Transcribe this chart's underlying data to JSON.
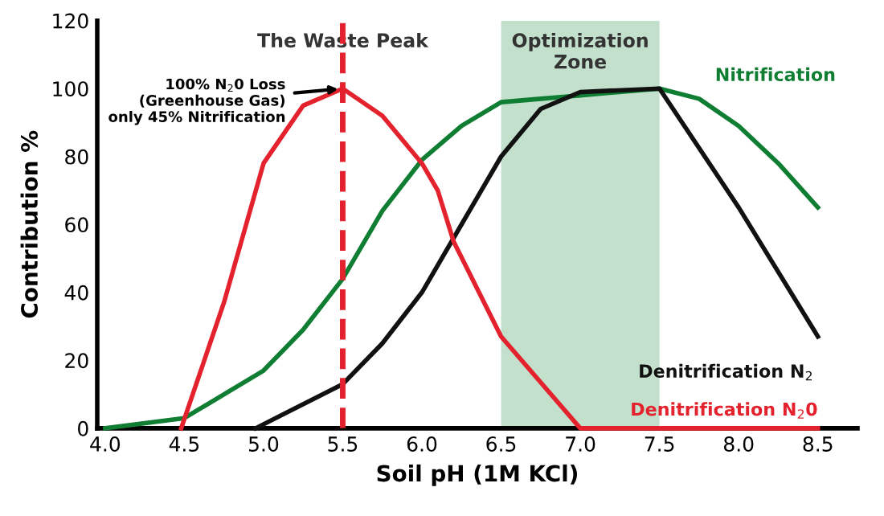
{
  "chart_data": {
    "type": "line",
    "xlabel": "Soil pH (1M KCl)",
    "ylabel": "Contribution %",
    "xlim": [
      3.95,
      8.75
    ],
    "ylim": [
      0,
      120
    ],
    "xticks": [
      {
        "value": 4,
        "label": "4.0"
      },
      4.5,
      {
        "value": 5,
        "label": "5.0"
      },
      5.5,
      {
        "value": 6,
        "label": "6.0"
      },
      6.5,
      {
        "value": 7,
        "label": "7.0"
      },
      7.5,
      {
        "value": 8,
        "label": "8.0"
      },
      8.5
    ],
    "yticks": [
      0,
      20,
      40,
      60,
      80,
      100,
      120
    ],
    "grid": false,
    "legend": false,
    "marker": "none",
    "line_style": "solid",
    "series": [
      {
        "name": "Nitrification",
        "color": "#0f7d32",
        "x": [
          4.0,
          4.5,
          5.0,
          5.25,
          5.5,
          5.75,
          6.0,
          6.25,
          6.5,
          6.75,
          7.0,
          7.5,
          7.75,
          8.0,
          8.25,
          8.5
        ],
        "values": [
          0,
          3,
          17,
          29,
          44,
          64,
          79,
          89,
          96,
          97,
          98,
          100,
          97,
          89,
          78,
          65
        ]
      },
      {
        "name": "Denitrification N$_{2}$",
        "color": "#111111",
        "x": [
          4.95,
          5.5,
          5.75,
          6.0,
          6.25,
          6.5,
          6.75,
          7.0,
          7.5,
          8.0,
          8.5
        ],
        "values": [
          0,
          13,
          25,
          40,
          60,
          80,
          94,
          99,
          100,
          65,
          27
        ]
      },
      {
        "name": "Denitrification N$_{2}$0",
        "color": "#e3222d",
        "x": [
          4.48,
          4.75,
          5.0,
          5.25,
          5.5,
          5.75,
          6.0,
          6.1,
          6.2,
          6.5,
          7.0,
          8.5
        ],
        "values": [
          0,
          37,
          78,
          95,
          100,
          92,
          78,
          70,
          55,
          27,
          0,
          0
        ]
      }
    ],
    "ref_lines": [
      {
        "axis": "x",
        "value": 5.5,
        "label": "The Waste Peak",
        "color": "#e3222d",
        "line_style": "dashed"
      }
    ],
    "bands": [
      {
        "axis": "x",
        "from": 6.5,
        "to": 7.5,
        "label": "Optimization\nZone",
        "color": "#c2e0cc"
      }
    ],
    "annotations": [
      {
        "text": "100% N$_{2}$0 Loss\n(Greenhouse Gas)\nonly 45% Nitrification",
        "x": 5.5,
        "y": 100
      }
    ]
  }
}
